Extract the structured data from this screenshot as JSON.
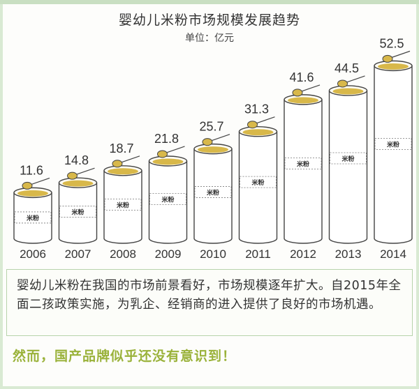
{
  "chart_data": {
    "type": "bar",
    "title": "婴幼儿米粉市场规模发展趋势",
    "subtitle": "单位：亿元",
    "categories": [
      "2006",
      "2007",
      "2008",
      "2009",
      "2010",
      "2011",
      "2012",
      "2013",
      "2014"
    ],
    "values": [
      11.6,
      14.8,
      18.7,
      21.8,
      25.7,
      31.3,
      41.6,
      44.5,
      52.5
    ],
    "value_labels": [
      "11.6",
      "14.8",
      "18.7",
      "21.8",
      "25.7",
      "31.3",
      "41.6",
      "44.5",
      "52.5"
    ],
    "can_label": "米粉",
    "grid": false,
    "legend": "none"
  },
  "text": {
    "paragraph": "婴幼儿米粉在我国的市场前景看好，市场规模逐年扩大。自2015年全面二孩政策实施，为乳企、经销商的进入提供了良好的市场机遇。",
    "footer": "然而，国产品牌似乎还没有意识到！"
  },
  "colors": {
    "background": "#d9ead3",
    "powder": "#d8b84a",
    "can_outline": "#444444",
    "footer_text": "#9ab23a",
    "box_border": "#b7d3ab"
  }
}
